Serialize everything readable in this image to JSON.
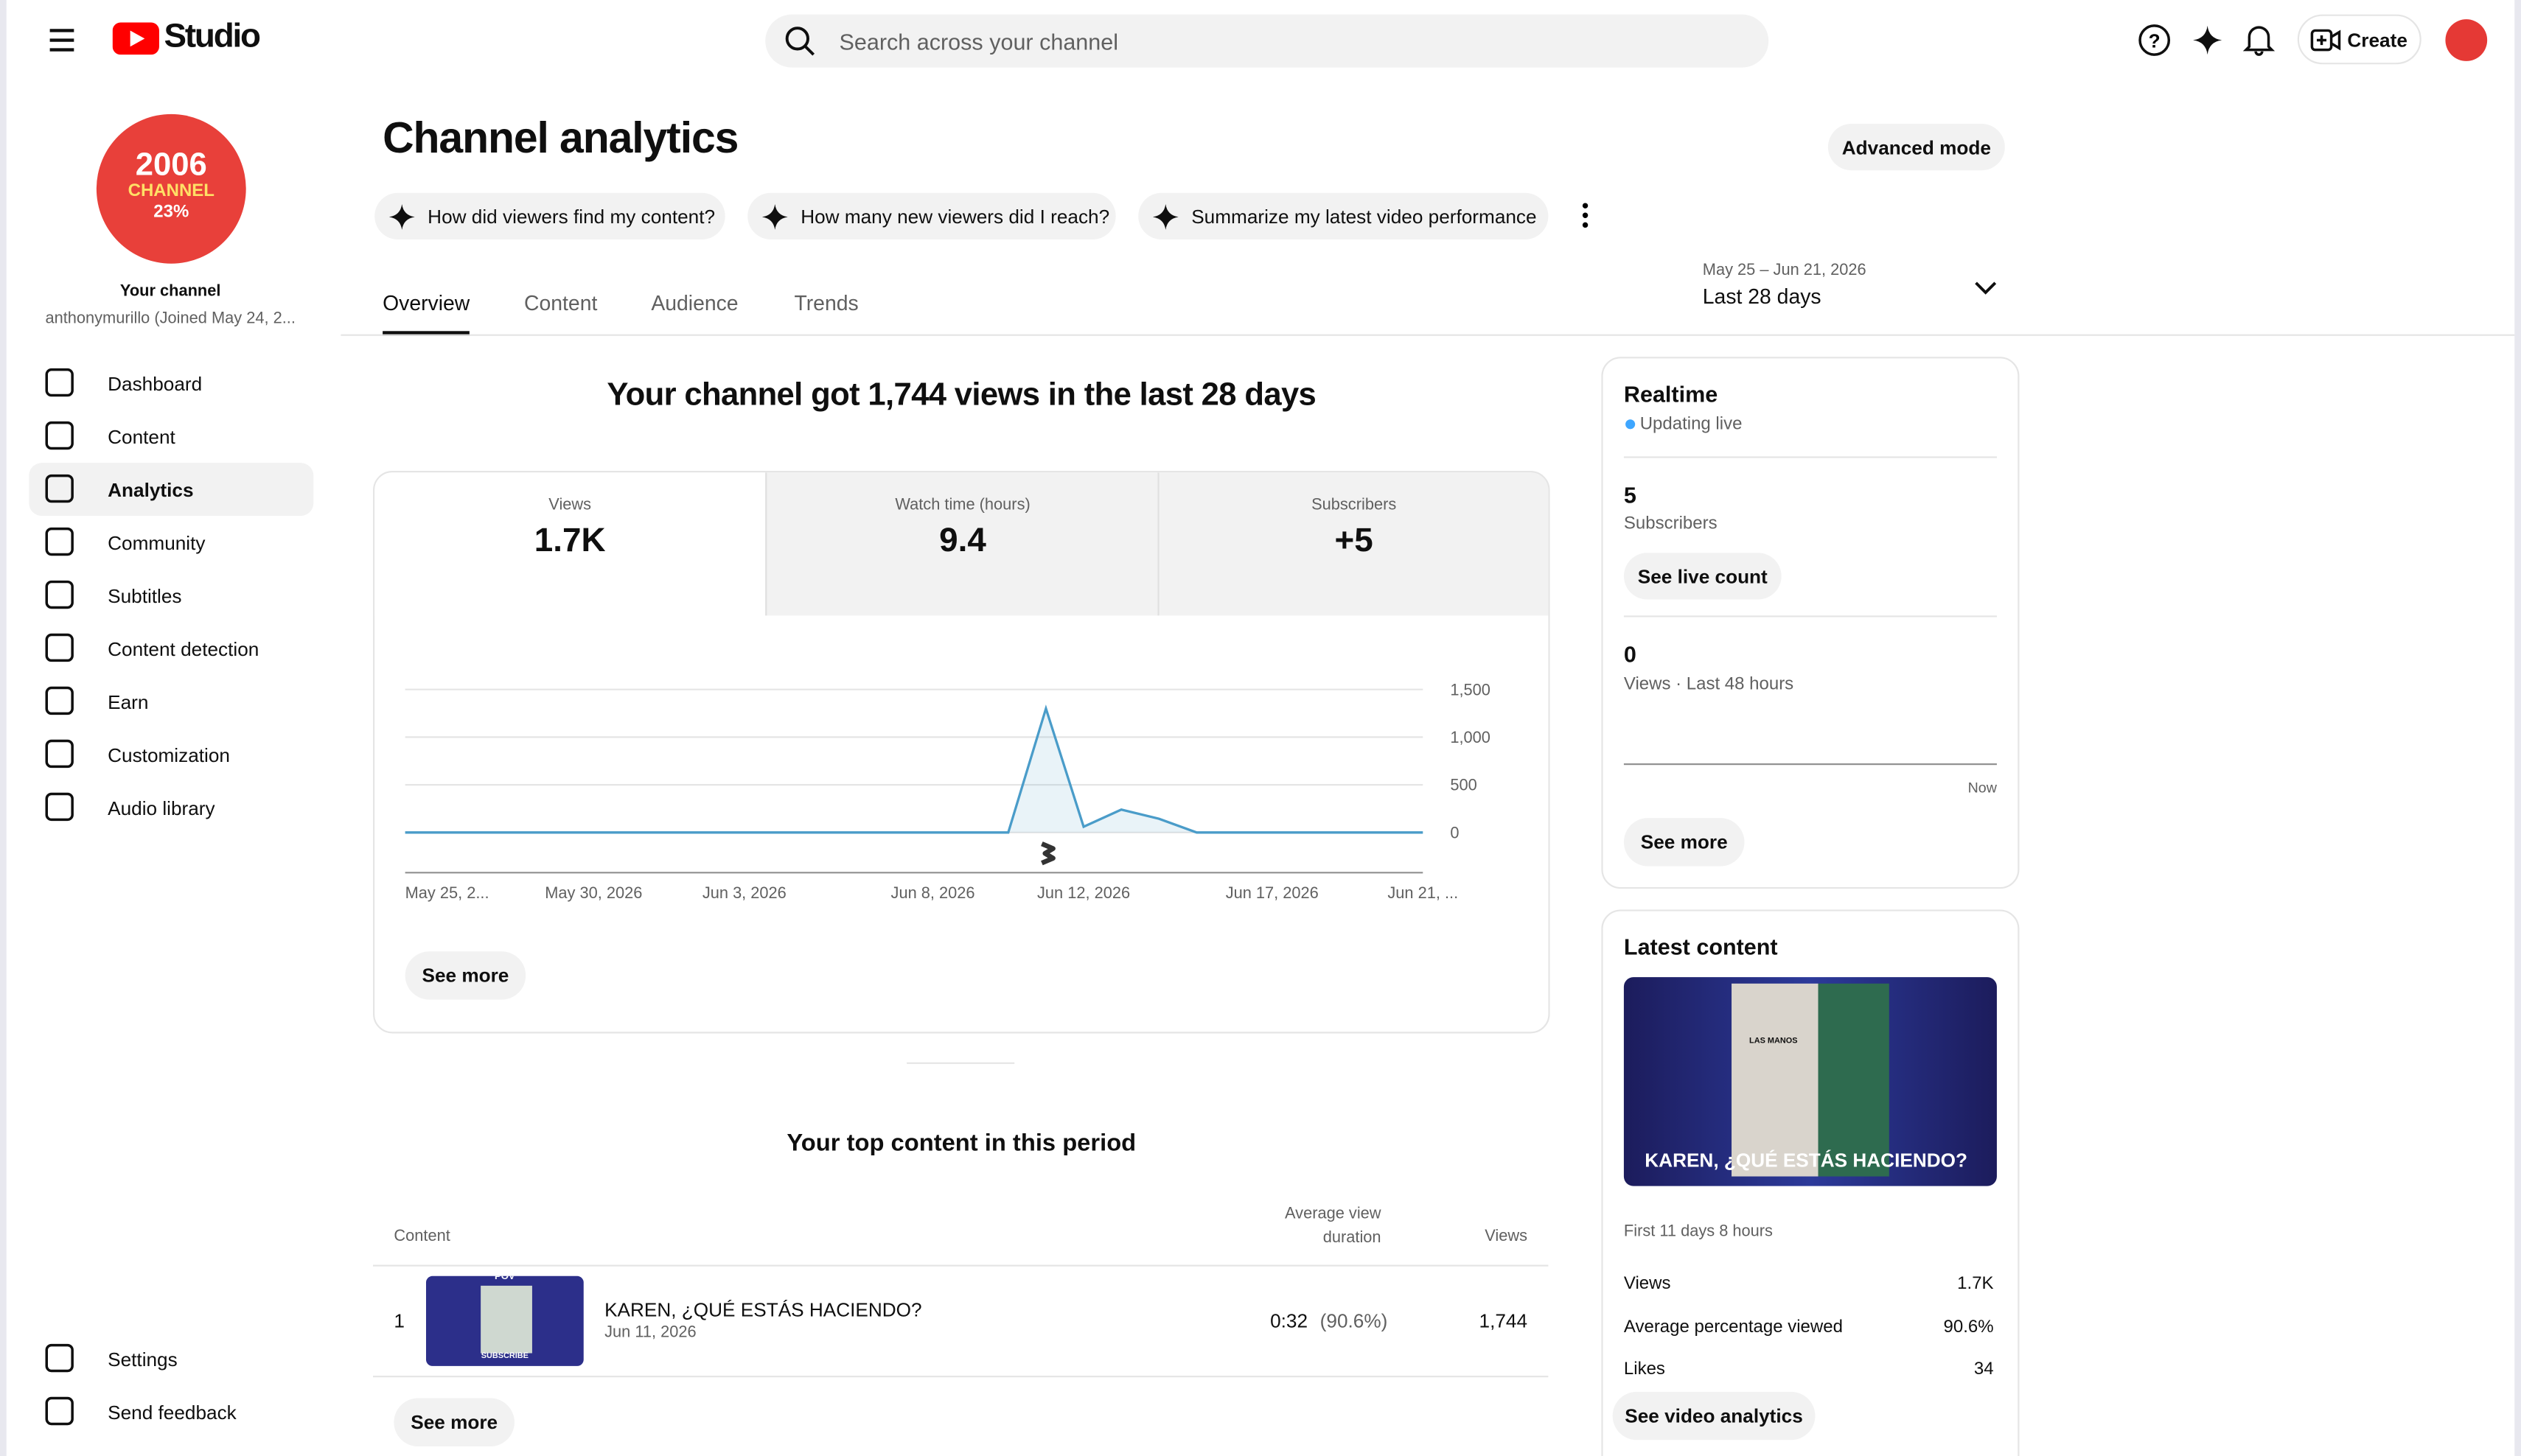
{
  "header": {
    "logo": "Studio",
    "search_placeholder": "Search across your channel",
    "create": "Create"
  },
  "sidebar": {
    "avatar_text": [
      "2006",
      "CHANNEL",
      "23%"
    ],
    "channel_label": "Your channel",
    "channel_name": "anthonymurillo (Joined May 24, 2...",
    "nav": [
      "Dashboard",
      "Content",
      "Analytics",
      "Community",
      "Subtitles",
      "Content detection",
      "Earn",
      "Customization",
      "Audio library"
    ],
    "footer_nav": [
      "Settings",
      "Send feedback"
    ]
  },
  "page": {
    "title": "Channel analytics",
    "advanced_mode": "Advanced mode",
    "chips": [
      "How did viewers find my content?",
      "How many new viewers did I reach?",
      "Summarize my latest video performance"
    ],
    "tabs": [
      "Overview",
      "Content",
      "Audience",
      "Trends"
    ],
    "date_range": "May 25 – Jun 21, 2026",
    "period": "Last 28 days"
  },
  "overview": {
    "headline": "Your channel got 1,744 views in the last 28 days",
    "metrics": [
      {
        "label": "Views",
        "value": "1.7K"
      },
      {
        "label": "Watch time (hours)",
        "value": "9.4"
      },
      {
        "label": "Subscribers",
        "value": "+5"
      }
    ],
    "see_more": "See more"
  },
  "chart_data": {
    "type": "line",
    "categories": [
      "May 25, 2...",
      null,
      null,
      null,
      null,
      "May 30, 2026",
      null,
      null,
      null,
      "Jun 3, 2026",
      null,
      null,
      null,
      null,
      "Jun 8, 2026",
      null,
      null,
      null,
      "Jun 12, 2026",
      null,
      null,
      null,
      null,
      "Jun 17, 2026",
      null,
      null,
      null,
      "Jun 21, ..."
    ],
    "series": [
      {
        "name": "Views",
        "color": "#4a9cc9",
        "values": [
          0,
          0,
          0,
          0,
          0,
          0,
          0,
          0,
          0,
          0,
          0,
          0,
          0,
          0,
          0,
          0,
          0,
          1300,
          60,
          240,
          144,
          0,
          0,
          0,
          0,
          0,
          0,
          0
        ]
      }
    ],
    "ylim": [
      0,
      1500
    ],
    "yticks": [
      0,
      500,
      {
        "value": 1000,
        "label": "1,000"
      },
      {
        "value": 1500,
        "label": "1,500"
      }
    ],
    "grid": true
  },
  "top_content": {
    "title": "Your top content in this period",
    "columns": [
      "Content",
      "Average view duration",
      "Views"
    ],
    "thumbnail_text": [
      "POV",
      "SUBSCRIBE"
    ],
    "rows": [
      {
        "rank": 1,
        "title": "KAREN, ¿QUÉ ESTÁS HACIENDO?",
        "date": "Jun 11, 2026",
        "duration": "0:32",
        "percent": "(90.6%)",
        "views": "1,744"
      }
    ],
    "see_more": "See more"
  },
  "realtime": {
    "title": "Realtime",
    "status": "Updating live",
    "subscribers": 5,
    "subscribers_label": "Subscribers",
    "live_count": "See live count",
    "views": 0,
    "views_label": "Views · Last 48 hours",
    "now": "Now",
    "see_more": "See more"
  },
  "latest": {
    "title": "Latest content",
    "thumbnail_text": "LAS MANOS",
    "video_title": "KAREN, ¿QUÉ ESTÁS HACIENDO?",
    "period": "First 11 days 8 hours",
    "stats": [
      {
        "label": "Views",
        "value": "1.7K"
      },
      {
        "label": "Average percentage viewed",
        "value": "90.6%"
      },
      {
        "label": "Likes",
        "value": "34"
      }
    ],
    "button": "See video analytics"
  }
}
